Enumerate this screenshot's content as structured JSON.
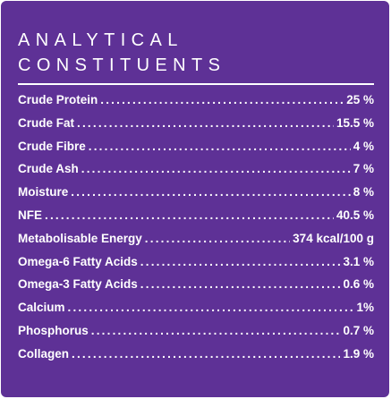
{
  "title_lines": [
    "ANALYTICAL",
    "CONSTITUENTS"
  ],
  "colors": {
    "panel_background": "#5e3196",
    "text": "#ffffff"
  },
  "constituents": [
    {
      "label": "Crude Protein",
      "value": "25 %"
    },
    {
      "label": "Crude Fat",
      "value": "15.5 %"
    },
    {
      "label": "Crude Fibre",
      "value": "4 %"
    },
    {
      "label": "Crude Ash",
      "value": "7 %"
    },
    {
      "label": "Moisture",
      "value": "8 %"
    },
    {
      "label": "NFE",
      "value": "40.5 %"
    },
    {
      "label": "Metabolisable Energy",
      "value": "374 kcal/100 g"
    },
    {
      "label": "Omega-6 Fatty Acids",
      "value": "3.1 %"
    },
    {
      "label": "Omega-3 Fatty Acids",
      "value": "0.6 %"
    },
    {
      "label": "Calcium",
      "value": "1%"
    },
    {
      "label": "Phosphorus",
      "value": "0.7 %"
    },
    {
      "label": "Collagen",
      "value": "1.9 %"
    }
  ]
}
